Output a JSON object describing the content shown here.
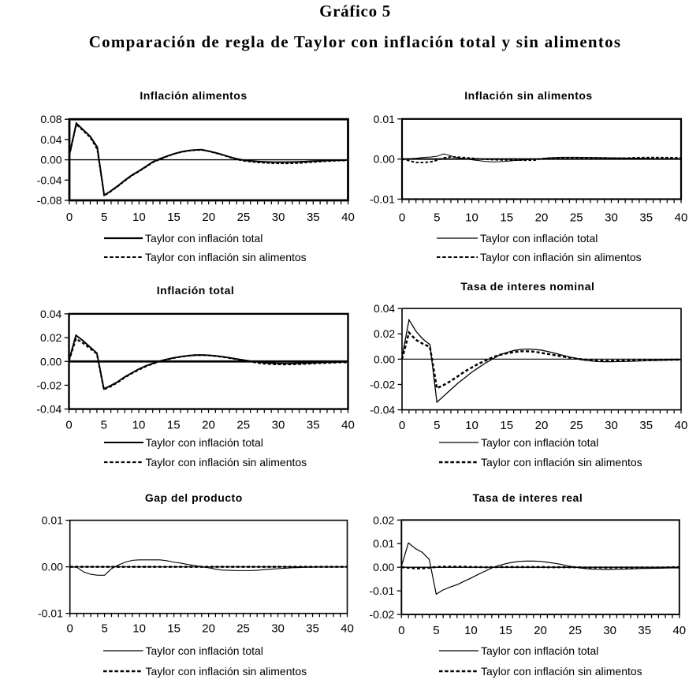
{
  "figure": {
    "label": "Gráfico 5",
    "title": "Comparación de regla de Taylor con inflación total y sin alimentos"
  },
  "legend": {
    "solid_label": "Taylor con inflación total",
    "dashed_label": "Taylor con inflación sin alimentos"
  },
  "chart_data": [
    {
      "type": "line",
      "title": "Inflación alimentos",
      "xlabel": "",
      "ylabel": "",
      "x_range": [
        0,
        40
      ],
      "x_step": 1,
      "xticks": [
        0,
        5,
        10,
        15,
        20,
        25,
        30,
        35,
        40
      ],
      "ylim": [
        -0.08,
        0.08
      ],
      "yticks": [
        {
          "label": "0.08",
          "value": 0.08
        },
        {
          "label": "0.04",
          "value": 0.04
        },
        {
          "label": "0.00",
          "value": 0.0
        },
        {
          "label": "-0.04",
          "value": -0.04
        },
        {
          "label": "-0.08",
          "value": -0.08
        }
      ],
      "grid": false,
      "zero_line": true,
      "legend_position": "below",
      "series": [
        {
          "name": "Taylor con inflación total",
          "style": "solid",
          "values": [
            0.01,
            0.072,
            0.059,
            0.046,
            0.025,
            -0.07,
            -0.061,
            -0.051,
            -0.04,
            -0.03,
            -0.022,
            -0.013,
            -0.004,
            0.002,
            0.007,
            0.0118,
            0.0155,
            0.018,
            0.0195,
            0.02,
            0.0172,
            0.0138,
            0.01,
            0.0057,
            0.002,
            -0.0006,
            -0.0021,
            -0.0033,
            -0.0041,
            -0.0046,
            -0.0048,
            -0.0048,
            -0.0046,
            -0.0042,
            -0.0035,
            -0.0028,
            -0.0021,
            -0.0015,
            -0.0011,
            -0.0008,
            -0.0005
          ]
        },
        {
          "name": "Taylor con inflación sin alimentos",
          "style": "dashed",
          "values": [
            0.008,
            0.07,
            0.057,
            0.044,
            0.021,
            -0.071,
            -0.062,
            -0.052,
            -0.041,
            -0.031,
            -0.023,
            -0.014,
            -0.005,
            0.001,
            0.0065,
            0.0115,
            0.015,
            0.0175,
            0.019,
            0.0195,
            0.0168,
            0.0133,
            0.0095,
            0.005,
            0.0008,
            -0.002,
            -0.0037,
            -0.005,
            -0.006,
            -0.0067,
            -0.0071,
            -0.0072,
            -0.007,
            -0.0064,
            -0.0054,
            -0.0044,
            -0.0035,
            -0.0027,
            -0.002,
            -0.0015,
            -0.0012
          ]
        }
      ]
    },
    {
      "type": "line",
      "title": "Inflación sin alimentos",
      "xlabel": "",
      "ylabel": "",
      "x_range": [
        0,
        40
      ],
      "x_step": 1,
      "xticks": [
        0,
        5,
        10,
        15,
        20,
        25,
        30,
        35,
        40
      ],
      "ylim": [
        -0.01,
        0.01
      ],
      "yticks": [
        {
          "label": "0.01",
          "value": 0.01
        },
        {
          "label": "0.00",
          "value": 0.0
        },
        {
          "label": "-0.01",
          "value": -0.01
        }
      ],
      "grid": false,
      "zero_line": true,
      "legend_position": "below",
      "series": [
        {
          "name": "Taylor con inflación total",
          "style": "solid",
          "values": [
            0.0,
            0.0001,
            0.0002,
            0.0004,
            0.0005,
            0.0007,
            0.0013,
            0.0008,
            0.0003,
            0.0001,
            -0.0002,
            -0.0004,
            -0.0006,
            -0.0007,
            -0.00065,
            -0.00055,
            -0.0004,
            -0.0003,
            -0.00015,
            -5e-05,
            0.0001,
            0.0003,
            0.0004,
            0.00045,
            0.00045,
            0.00045,
            0.00042,
            0.0004,
            0.00038,
            0.00035,
            0.00032,
            0.0003,
            0.00027,
            0.00023,
            0.0002,
            0.00017,
            0.00014,
            0.0001,
            8e-05,
            5e-05,
            3e-05
          ]
        },
        {
          "name": "Taylor con inflación sin alimentos",
          "style": "dashed",
          "values": [
            0.0,
            -0.0004,
            -0.00085,
            -0.00085,
            -0.00075,
            -0.0003,
            0.0003,
            0.00055,
            0.00048,
            0.00035,
            0.0002,
            5e-05,
            -8e-05,
            -0.00015,
            -0.0002,
            -0.00024,
            -0.00026,
            -0.00028,
            -0.0003,
            -0.0003,
            0.00012,
            0.0002,
            0.00028,
            0.0003,
            0.0003,
            0.0003,
            0.0003,
            0.00028,
            0.00027,
            0.00026,
            0.00024,
            0.00022,
            0.0002,
            0.00032,
            0.00035,
            0.00037,
            0.00038,
            0.00037,
            0.00035,
            0.00032,
            0.0003
          ]
        }
      ]
    },
    {
      "type": "line",
      "title": "Inflación total",
      "xlabel": "",
      "ylabel": "",
      "x_range": [
        0,
        40
      ],
      "x_step": 1,
      "xticks": [
        0,
        5,
        10,
        15,
        20,
        25,
        30,
        35,
        40
      ],
      "ylim": [
        -0.04,
        0.04
      ],
      "yticks": [
        {
          "label": "0.04",
          "value": 0.04
        },
        {
          "label": "0.02",
          "value": 0.02
        },
        {
          "label": "0.00",
          "value": 0.0
        },
        {
          "label": "-0.02",
          "value": -0.02
        },
        {
          "label": "-0.04",
          "value": -0.04
        }
      ],
      "grid": false,
      "zero_line": true,
      "legend_position": "below",
      "series": [
        {
          "name": "Taylor con inflación total",
          "style": "solid",
          "values": [
            0.001,
            0.022,
            0.0175,
            0.0122,
            0.007,
            -0.023,
            -0.0203,
            -0.017,
            -0.013,
            -0.0097,
            -0.0064,
            -0.0037,
            -0.0017,
            0.0003,
            0.0018,
            0.003,
            0.004,
            0.0048,
            0.0053,
            0.0054,
            0.0052,
            0.0047,
            0.004,
            0.0031,
            0.0021,
            0.0012,
            0.0003,
            -0.0004,
            -0.001,
            -0.0014,
            -0.0016,
            -0.0017,
            -0.0016,
            -0.0015,
            -0.0013,
            -0.0011,
            -0.0009,
            -0.0007,
            -0.0006,
            -0.0004,
            -0.0003
          ]
        },
        {
          "name": "Taylor con inflación sin alimentos",
          "style": "dashed",
          "values": [
            0.0005,
            0.019,
            0.0155,
            0.011,
            0.0065,
            -0.0235,
            -0.021,
            -0.0175,
            -0.0135,
            -0.01,
            -0.007,
            -0.0042,
            -0.002,
            0.0001,
            0.0016,
            0.0029,
            0.0039,
            0.0047,
            0.0052,
            0.0053,
            0.0051,
            0.0046,
            0.0038,
            0.0029,
            0.0019,
            0.0009,
            0.0,
            -0.0012,
            -0.0018,
            -0.0022,
            -0.0024,
            -0.0025,
            -0.0024,
            -0.0022,
            -0.002,
            -0.0017,
            -0.0014,
            -0.0012,
            -0.001,
            -0.0008,
            -0.0007
          ]
        }
      ]
    },
    {
      "type": "line",
      "title": "Tasa de interes nominal",
      "xlabel": "",
      "ylabel": "",
      "x_range": [
        0,
        40
      ],
      "x_step": 1,
      "xticks": [
        0,
        5,
        10,
        15,
        20,
        25,
        30,
        35,
        40
      ],
      "ylim": [
        -0.04,
        0.04
      ],
      "yticks": [
        {
          "label": "0.04",
          "value": 0.04
        },
        {
          "label": "0.02",
          "value": 0.02
        },
        {
          "label": "0.00",
          "value": 0.0
        },
        {
          "label": "-0.02",
          "value": -0.02
        },
        {
          "label": "-0.04",
          "value": -0.04
        }
      ],
      "grid": false,
      "zero_line": true,
      "legend_position": "below",
      "series": [
        {
          "name": "Taylor con inflación total",
          "style": "solid",
          "values": [
            0.0015,
            0.031,
            0.022,
            0.0158,
            0.0115,
            -0.034,
            -0.029,
            -0.024,
            -0.019,
            -0.0147,
            -0.0103,
            -0.0066,
            -0.0029,
            0.0002,
            0.0034,
            0.0052,
            0.0068,
            0.0077,
            0.008,
            0.0077,
            0.0071,
            0.0059,
            0.0046,
            0.0031,
            0.0018,
            0.0006,
            -0.0007,
            -0.0013,
            -0.0019,
            -0.002,
            -0.002,
            -0.0019,
            -0.0018,
            -0.0016,
            -0.0014,
            -0.0012,
            -0.001,
            -0.0009,
            -0.0007,
            -0.0006,
            -0.0005
          ]
        },
        {
          "name": "Taylor con inflación sin alimentos",
          "style": "dashed",
          "values": [
            0.0,
            0.021,
            0.0152,
            0.0121,
            0.0096,
            -0.023,
            -0.0203,
            -0.0172,
            -0.0135,
            -0.0097,
            -0.0066,
            -0.0035,
            -0.001,
            0.0015,
            0.0034,
            0.0046,
            0.0055,
            0.0062,
            0.0062,
            0.0059,
            0.0049,
            0.004,
            0.0031,
            0.0021,
            0.0012,
            0.0004,
            -0.0003,
            -0.0008,
            -0.0012,
            -0.0013,
            -0.0013,
            -0.0012,
            -0.0011,
            -0.001,
            -0.0009,
            -0.0008,
            -0.0007,
            -0.0006,
            -0.0005,
            -0.0004,
            -0.0004
          ]
        }
      ]
    },
    {
      "type": "line",
      "title": "Gap del producto",
      "xlabel": "",
      "ylabel": "",
      "x_range": [
        0,
        40
      ],
      "x_step": 1,
      "xticks": [
        0,
        5,
        10,
        15,
        20,
        25,
        30,
        35,
        40
      ],
      "ylim": [
        -0.01,
        0.01
      ],
      "yticks": [
        {
          "label": "0.01",
          "value": 0.01
        },
        {
          "label": "0.00",
          "value": 0.0
        },
        {
          "label": "-0.01",
          "value": -0.01
        }
      ],
      "grid": false,
      "zero_line": true,
      "legend_position": "below",
      "series": [
        {
          "name": "Taylor con inflación total",
          "style": "solid",
          "values": [
            0.0,
            -0.0001,
            -0.0011,
            -0.0016,
            -0.0018,
            -0.0018,
            -0.0004,
            0.0004,
            0.001,
            0.0014,
            0.0015,
            0.0015,
            0.0015,
            0.0015,
            0.0013,
            0.001,
            0.0008,
            0.0005,
            0.0003,
            0.0,
            -0.0002,
            -0.0005,
            -0.0007,
            -0.00075,
            -0.0008,
            -0.0008,
            -0.0008,
            -0.00075,
            -0.0006,
            -0.0005,
            -0.0004,
            -0.0003,
            -0.0002,
            -0.00015,
            -0.0001,
            -8e-05,
            -6e-05,
            -5e-05,
            -4e-05,
            -3e-05,
            -2e-05
          ]
        },
        {
          "name": "Taylor con inflación sin alimentos",
          "style": "dashed",
          "values": [
            0.0,
            0.0,
            0.0,
            0.0,
            0.0,
            0.0,
            0.0,
            0.0,
            0.0,
            0.0,
            0.0,
            0.0,
            0.0,
            0.0,
            0.0,
            0.0,
            0.0,
            0.0,
            0.0,
            0.0,
            0.0,
            0.0,
            0.0,
            0.0,
            0.0,
            0.0,
            0.0,
            0.0,
            0.0,
            0.0,
            0.0,
            0.0,
            0.0,
            0.0,
            0.0,
            0.0,
            0.0,
            0.0,
            0.0,
            0.0,
            0.0
          ]
        }
      ]
    },
    {
      "type": "line",
      "title": "Tasa de interes real",
      "xlabel": "",
      "ylabel": "",
      "x_range": [
        0,
        40
      ],
      "x_step": 1,
      "xticks": [
        0,
        5,
        10,
        15,
        20,
        25,
        30,
        35,
        40
      ],
      "ylim": [
        -0.02,
        0.02
      ],
      "yticks": [
        {
          "label": "0.02",
          "value": 0.02
        },
        {
          "label": "0.01",
          "value": 0.01
        },
        {
          "label": "0.00",
          "value": 0.0
        },
        {
          "label": "-0.01",
          "value": -0.01
        },
        {
          "label": "-0.02",
          "value": -0.02
        }
      ],
      "grid": false,
      "zero_line": true,
      "legend_position": "below",
      "series": [
        {
          "name": "Taylor con inflación total",
          "style": "solid",
          "values": [
            0.0005,
            0.0103,
            0.0079,
            0.0063,
            0.0033,
            -0.0114,
            -0.0096,
            -0.0084,
            -0.0074,
            -0.006,
            -0.0046,
            -0.0031,
            -0.0017,
            -0.0003,
            0.0007,
            0.0015,
            0.0021,
            0.0025,
            0.0026,
            0.0026,
            0.0025,
            0.0021,
            0.0017,
            0.0012,
            0.0005,
            0.0,
            -0.0004,
            -0.0007,
            -0.00085,
            -0.0009,
            -0.0009,
            -0.00085,
            -0.0008,
            -0.0007,
            -0.0006,
            -0.0005,
            -0.00045,
            -0.0004,
            -0.00035,
            -0.0003,
            -0.0003
          ]
        },
        {
          "name": "Taylor con inflación sin alimentos",
          "style": "dashed",
          "values": [
            0.0,
            -0.0002,
            -0.0005,
            -0.0005,
            -0.0002,
            0.0001,
            0.0002,
            0.0002,
            0.0002,
            0.0002,
            0.0001,
            0.0001,
            0.0,
            0.0,
            0.0001,
            0.0001,
            0.0001,
            0.0001,
            0.0001,
            0.0001,
            0.0001,
            0.0,
            0.0,
            0.0,
            0.0,
            0.0,
            -0.0001,
            -0.0001,
            -0.0001,
            -0.0001,
            -0.0001,
            -0.0001,
            -0.0001,
            -0.0001,
            -0.0001,
            -0.0001,
            -0.0001,
            -0.0001,
            -0.0001,
            0.0,
            0.0
          ]
        }
      ]
    }
  ]
}
